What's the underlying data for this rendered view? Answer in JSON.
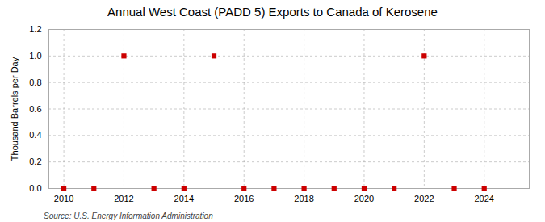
{
  "chart_data": {
    "type": "scatter",
    "title": "Annual West Coast (PADD 5) Exports to Canada of Kerosene",
    "ylabel": "Thousand Barrels per Day",
    "source": "Source: U.S. Energy Information Administration",
    "x": [
      2010,
      2011,
      2012,
      2013,
      2014,
      2015,
      2016,
      2017,
      2018,
      2019,
      2020,
      2021,
      2022,
      2023,
      2024
    ],
    "values": [
      0.0,
      0.0,
      1.0,
      0.0,
      0.0,
      1.0,
      0.0,
      0.0,
      0.0,
      0.0,
      0.0,
      0.0,
      1.0,
      0.0,
      0.0
    ],
    "color": "#cc0000",
    "marker": "square",
    "xlim": [
      2009.5,
      2025.5
    ],
    "xticks": [
      2010,
      2012,
      2014,
      2016,
      2018,
      2020,
      2022,
      2024
    ],
    "ylim": [
      0.0,
      1.2
    ],
    "yticks": [
      {
        "value": 0.0,
        "label": "0.0"
      },
      0.2,
      0.4,
      0.6,
      0.8,
      {
        "value": 1.0,
        "label": "1.0"
      },
      1.2
    ],
    "grid": true
  }
}
